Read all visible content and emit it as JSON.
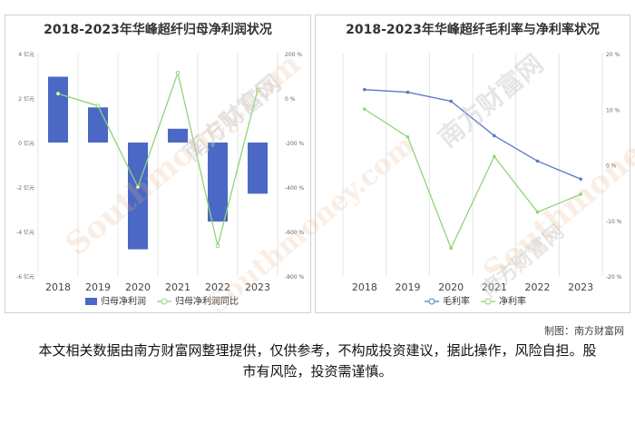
{
  "chart_data": [
    {
      "type": "bar+line",
      "title": "2018-2023年华峰超纤归母净利润状况",
      "categories": [
        "2018",
        "2019",
        "2020",
        "2021",
        "2022",
        "2023"
      ],
      "series": [
        {
          "name": "归母净利润",
          "type": "bar",
          "axis": "left",
          "values": [
            2.96,
            1.58,
            -4.8,
            0.62,
            -3.55,
            -2.3
          ]
        },
        {
          "name": "归母净利润同比",
          "type": "line",
          "axis": "right",
          "values": [
            20,
            -35,
            -400,
            113,
            -665,
            36
          ]
        }
      ],
      "y_left": {
        "ticks": [
          4,
          2,
          0,
          -2,
          -4,
          -6
        ],
        "tick_labels": [
          "4 亿元",
          "2 亿元",
          "0 亿元",
          "-2 亿元",
          "-4 亿元",
          "-6 亿元"
        ],
        "range": [
          -6,
          4
        ]
      },
      "y_right": {
        "ticks": [
          200,
          0,
          -200,
          -400,
          -600,
          -800
        ],
        "tick_labels": [
          "200 %",
          "0 %",
          "-200 %",
          "-400 %",
          "-600 %",
          "-800 %"
        ],
        "range": [
          -800,
          200
        ]
      },
      "legend_position": "bottom",
      "colors": {
        "bar": "#4a68c4",
        "line": "#8fd47a"
      },
      "grid": "vertical"
    },
    {
      "type": "line",
      "title": "2018-2023年华峰超纤毛利率与净利率状况",
      "categories": [
        "2018",
        "2019",
        "2020",
        "2021",
        "2022",
        "2023"
      ],
      "series": [
        {
          "name": "毛利率",
          "axis": "left",
          "values": [
            27.2,
            26.7,
            25.0,
            18.5,
            13.7,
            10.3
          ]
        },
        {
          "name": "净利率",
          "axis": "right",
          "values": [
            10,
            5,
            -15,
            1.5,
            -8.5,
            -5.3
          ]
        }
      ],
      "y_right": {
        "ticks": [
          20,
          10,
          0,
          -10,
          -20
        ],
        "tick_labels": [
          "20 %",
          "10 %",
          "0 %",
          "-10 %",
          "-20 %"
        ],
        "range": [
          -20,
          20
        ]
      },
      "y_left_range": [
        -8,
        34
      ],
      "legend_position": "bottom",
      "colors": {
        "毛利率": "#5a78c8",
        "净利率": "#8fd47a"
      },
      "grid": "vertical"
    }
  ],
  "credit": "制图：南方财富网",
  "disclaimer": "本文相关数据由南方财富网整理提供，仅供参考，不构成投资建议，据此操作，风险自担。股市有风险，投资需谨慎。",
  "watermark": {
    "latin": "Southmoney.com",
    "chinese": "南方财富网"
  }
}
